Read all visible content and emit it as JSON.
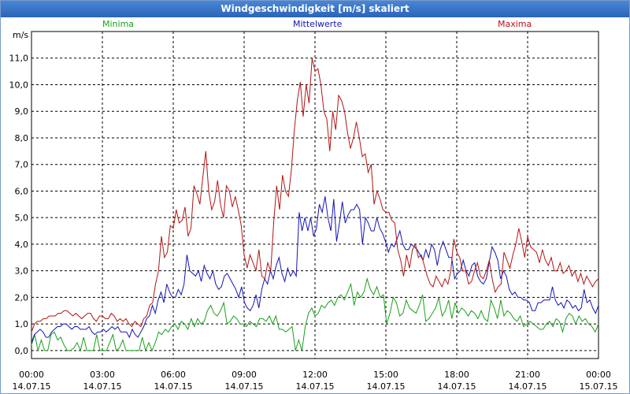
{
  "window": {
    "title": "Windgeschwindigkeit [m/s] skaliert"
  },
  "chart_data": {
    "type": "line",
    "title": "Windgeschwindigkeit [m/s] skaliert",
    "ylabel": "m/s",
    "ylim": [
      -0.3,
      12.0
    ],
    "xlim_hours": [
      0,
      24
    ],
    "y_ticks": [
      "0,0",
      "1,0",
      "2,0",
      "3,0",
      "4,0",
      "5,0",
      "6,0",
      "7,0",
      "8,0",
      "9,0",
      "10,0",
      "11,0"
    ],
    "x_ticks": [
      {
        "time": "00:00",
        "date": "14.07.15"
      },
      {
        "time": "03:00",
        "date": "14.07.15"
      },
      {
        "time": "06:00",
        "date": "14.07.15"
      },
      {
        "time": "09:00",
        "date": "14.07.15"
      },
      {
        "time": "12:00",
        "date": "14.07.15"
      },
      {
        "time": "15:00",
        "date": "14.07.15"
      },
      {
        "time": "18:00",
        "date": "14.07.15"
      },
      {
        "time": "21:00",
        "date": "14.07.15"
      },
      {
        "time": "00:00",
        "date": "15.07.15"
      }
    ],
    "grid": true,
    "series": [
      {
        "name": "Minima",
        "color": "#1aa01a",
        "values": [
          0.2,
          0.6,
          0.0,
          0.4,
          0.0,
          0.0,
          0.6,
          0.7,
          0.4,
          0.5,
          0.2,
          0.0,
          0.0,
          0.1,
          0.3,
          0.0,
          0.5,
          0.0,
          0.0,
          0.0,
          0.6,
          0.0,
          0.0,
          0.0,
          0.3,
          0.6,
          0.0,
          0.1,
          0.4,
          0.0,
          0.0,
          0.0,
          0.0,
          0.0,
          0.5,
          0.0,
          0.3,
          0.0,
          0.3,
          0.7,
          0.6,
          0.8,
          0.7,
          0.9,
          1.0,
          0.8,
          1.1,
          1.0,
          0.8,
          1.2,
          0.9,
          1.2,
          1.0,
          1.1,
          1.5,
          1.7,
          1.4,
          1.3,
          1.5,
          1.8,
          1.0,
          1.1,
          1.3,
          1.2,
          1.0,
          1.0,
          0.9,
          1.1,
          1.0,
          0.9,
          1.2,
          1.2,
          1.1,
          1.3,
          1.0,
          1.3,
          0.8,
          0.8,
          0.7,
          0.8,
          0.9,
          0.0,
          0.4,
          0.0,
          0.9,
          1.4,
          1.6,
          1.3,
          1.4,
          1.7,
          1.6,
          1.8,
          1.9,
          1.7,
          2.0,
          2.1,
          1.9,
          2.2,
          2.5,
          1.7,
          2.2,
          2.0,
          2.2,
          2.7,
          2.3,
          2.1,
          2.4,
          2.0,
          2.1,
          1.0,
          1.4,
          2.0,
          1.8,
          1.3,
          1.4,
          1.9,
          1.6,
          1.5,
          1.4,
          1.7,
          2.1,
          1.1,
          1.2,
          1.4,
          1.6,
          2.0,
          1.3,
          1.5,
          1.9,
          1.2,
          1.8,
          1.4,
          1.6,
          1.5,
          1.3,
          1.5,
          1.4,
          1.2,
          1.5,
          1.2,
          1.1,
          1.9,
          1.6,
          1.2,
          1.9,
          1.3,
          1.5,
          1.4,
          1.2,
          1.1,
          1.3,
          0.9,
          1.0,
          1.1,
          1.0,
          0.9,
          0.8,
          0.8,
          1.0,
          1.1,
          0.9,
          1.2,
          1.1,
          0.7,
          1.2,
          1.4,
          1.3,
          1.0,
          1.3,
          1.1,
          1.2,
          1.0,
          0.9,
          0.7,
          1.0
        ]
      },
      {
        "name": "Mittelwerte",
        "color": "#1414b4",
        "values": [
          0.3,
          0.6,
          0.7,
          0.8,
          0.7,
          0.5,
          0.5,
          0.7,
          0.8,
          0.9,
          0.9,
          1.0,
          1.0,
          0.9,
          0.8,
          0.9,
          0.9,
          0.8,
          0.8,
          0.8,
          0.9,
          0.7,
          0.6,
          0.7,
          0.7,
          0.8,
          0.7,
          0.8,
          0.9,
          0.8,
          0.9,
          0.7,
          0.7,
          0.7,
          0.5,
          0.8,
          0.6,
          0.5,
          0.7,
          0.9,
          1.2,
          1.3,
          1.7,
          1.4,
          1.9,
          2.2,
          1.8,
          2.5,
          2.2,
          2.0,
          2.0,
          2.3,
          2.1,
          2.5,
          3.6,
          3.0,
          2.9,
          2.8,
          3.0,
          2.6,
          3.2,
          2.9,
          2.7,
          3.0,
          2.5,
          2.3,
          2.4,
          2.8,
          2.9,
          2.7,
          2.5,
          2.3,
          2.0,
          2.4,
          1.8,
          1.6,
          1.5,
          1.7,
          2.1,
          1.6,
          2.3,
          2.7,
          2.5,
          3.0,
          2.7,
          3.2,
          3.5,
          2.9,
          2.6,
          3.1,
          2.8,
          3.0,
          2.8,
          5.2,
          4.5,
          5.0,
          4.5,
          5.0,
          4.3,
          4.6,
          5.5,
          5.2,
          5.8,
          5.0,
          4.5,
          5.7,
          4.1,
          4.8,
          5.6,
          4.8,
          5.1,
          5.3,
          5.3,
          5.5,
          5.3,
          4.0,
          5.0,
          4.8,
          4.5,
          4.5,
          5.0,
          4.6,
          4.4,
          4.1,
          3.7,
          4.0,
          3.9,
          4.2,
          4.5,
          4.0,
          3.8,
          3.8,
          4.0,
          3.9,
          3.8,
          3.6,
          3.4,
          3.8,
          3.5,
          4.0,
          3.8,
          3.2,
          3.8,
          4.1,
          3.8,
          3.5,
          3.5,
          2.7,
          2.9,
          3.0,
          3.4,
          3.0,
          2.8,
          3.2,
          3.3,
          2.8,
          2.6,
          2.5,
          2.7,
          3.3,
          3.9,
          3.7,
          3.4,
          2.7,
          3.0,
          2.8,
          2.3,
          2.1,
          2.2,
          2.0,
          2.0,
          1.9,
          1.9,
          1.8,
          1.5,
          1.5,
          1.8,
          1.8,
          1.9,
          1.9,
          1.9,
          2.4,
          1.9,
          1.7,
          1.8,
          1.6,
          1.9,
          1.8,
          1.6,
          1.7,
          1.5,
          1.6,
          2.3,
          1.8,
          1.9,
          1.6,
          1.4,
          1.7
        ]
      },
      {
        "name": "Maxima",
        "color": "#b41414",
        "values": [
          0.7,
          1.0,
          1.1,
          1.1,
          1.2,
          1.2,
          1.3,
          1.3,
          1.3,
          1.4,
          1.4,
          1.5,
          1.5,
          1.4,
          1.3,
          1.4,
          1.3,
          1.2,
          1.3,
          1.4,
          1.4,
          1.2,
          1.1,
          1.3,
          1.3,
          1.2,
          1.2,
          1.4,
          1.3,
          1.1,
          1.2,
          1.1,
          1.2,
          1.0,
          0.9,
          1.1,
          1.0,
          0.9,
          1.2,
          1.3,
          1.7,
          1.8,
          2.5,
          3.0,
          4.3,
          3.5,
          3.7,
          4.7,
          4.6,
          5.3,
          4.8,
          4.9,
          5.4,
          4.3,
          4.6,
          6.2,
          5.9,
          5.5,
          6.5,
          7.5,
          6.0,
          5.3,
          5.6,
          6.4,
          5.5,
          5.0,
          6.2,
          6.0,
          5.4,
          5.8,
          5.3,
          4.7,
          3.6,
          3.1,
          3.6,
          3.3,
          3.0,
          3.8,
          2.8,
          2.7,
          3.3,
          3.0,
          4.8,
          6.2,
          5.3,
          6.6,
          6.0,
          5.8,
          6.8,
          8.3,
          9.4,
          10.1,
          8.8,
          10.0,
          9.3,
          11.0,
          10.5,
          10.6,
          10.0,
          9.0,
          8.7,
          7.5,
          9.0,
          8.3,
          9.6,
          9.4,
          9.0,
          8.2,
          7.6,
          8.0,
          8.6,
          8.0,
          7.3,
          7.4,
          6.7,
          7.0,
          5.5,
          6.0,
          5.7,
          5.3,
          5.2,
          5.2,
          4.9,
          4.8,
          3.8,
          3.4,
          2.8,
          3.6,
          3.1,
          3.8,
          4.0,
          3.5,
          3.6,
          3.2,
          2.8,
          2.5,
          2.4,
          2.8,
          2.6,
          2.4,
          2.7,
          2.5,
          3.0,
          4.2,
          3.7,
          3.5,
          3.0,
          3.0,
          2.5,
          2.6,
          3.0,
          3.3,
          2.8,
          2.7,
          3.0,
          3.4,
          2.7,
          2.2,
          2.4,
          2.5,
          3.7,
          3.4,
          3.1,
          3.6,
          4.0,
          4.6,
          4.1,
          3.5,
          4.3,
          3.9,
          3.8,
          3.7,
          3.3,
          3.8,
          3.4,
          3.2,
          3.5,
          3.0,
          3.0,
          3.3,
          2.9,
          3.0,
          3.2,
          2.8,
          3.0,
          2.6,
          2.9,
          2.5,
          2.8,
          2.6,
          2.4,
          2.6,
          2.7
        ]
      }
    ]
  }
}
